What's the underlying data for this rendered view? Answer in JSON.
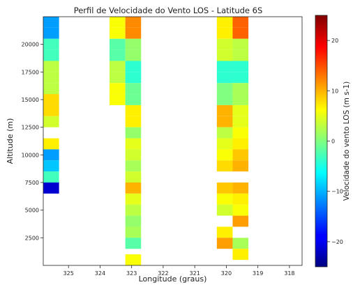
{
  "chart_data": {
    "type": "heatmap",
    "title": "Perfil de Velocidade do Vento LOS - Latitude 6S",
    "xlabel": "Longitude (graus)",
    "ylabel": "Altitude (m)",
    "colorbar_label": "Velocidade do vento LOS (m s-1)",
    "colormap": "jet",
    "x_inverted": true,
    "xlim": [
      325.8,
      317.6
    ],
    "ylim": [
      0,
      22500
    ],
    "xticks": [
      325,
      324,
      323,
      322,
      321,
      320,
      319,
      318
    ],
    "yticks": [
      2500,
      5000,
      7500,
      10000,
      12500,
      15000,
      17500,
      20000
    ],
    "clim": [
      -25,
      25
    ],
    "cticks": [
      -20,
      -10,
      0,
      10,
      20
    ],
    "cell_height_m": 1000,
    "columns": [
      {
        "lon_left": 325.8,
        "lon_right": 325.3,
        "cells": [
          {
            "alt": 22000,
            "v": -11
          },
          {
            "alt": 21000,
            "v": -11
          },
          {
            "alt": 20000,
            "v": -3
          },
          {
            "alt": 19000,
            "v": -3
          },
          {
            "alt": 18000,
            "v": 3
          },
          {
            "alt": 17000,
            "v": 3
          },
          {
            "alt": 16000,
            "v": 3
          },
          {
            "alt": 15000,
            "v": 8
          },
          {
            "alt": 14000,
            "v": 8
          },
          {
            "alt": 13000,
            "v": 4
          },
          {
            "alt": 11000,
            "v": 7
          },
          {
            "alt": 10000,
            "v": -11
          },
          {
            "alt": 9000,
            "v": -9
          },
          {
            "alt": 8000,
            "v": -3
          },
          {
            "alt": 7000,
            "v": -21
          }
        ]
      },
      {
        "lon_left": 323.7,
        "lon_right": 323.2,
        "cells": [
          {
            "alt": 22000,
            "v": 6
          },
          {
            "alt": 21000,
            "v": 6
          },
          {
            "alt": 20000,
            "v": -2
          },
          {
            "alt": 19000,
            "v": -2
          },
          {
            "alt": 18000,
            "v": 3
          },
          {
            "alt": 17000,
            "v": 3
          },
          {
            "alt": 16000,
            "v": 6
          },
          {
            "alt": 15000,
            "v": 6
          }
        ]
      },
      {
        "lon_left": 323.2,
        "lon_right": 322.7,
        "cells": [
          {
            "alt": 22000,
            "v": 12
          },
          {
            "alt": 21000,
            "v": 12
          },
          {
            "alt": 20000,
            "v": 1
          },
          {
            "alt": 19000,
            "v": 1
          },
          {
            "alt": 18000,
            "v": -4
          },
          {
            "alt": 17000,
            "v": -4
          },
          {
            "alt": 16000,
            "v": -1
          },
          {
            "alt": 15000,
            "v": -1
          },
          {
            "alt": 14000,
            "v": 7
          },
          {
            "alt": 13000,
            "v": 7
          },
          {
            "alt": 12000,
            "v": 1
          },
          {
            "alt": 11000,
            "v": 5
          },
          {
            "alt": 10000,
            "v": 4
          },
          {
            "alt": 9000,
            "v": 2
          },
          {
            "alt": 8000,
            "v": 4
          },
          {
            "alt": 7000,
            "v": 10
          },
          {
            "alt": 6000,
            "v": 5
          },
          {
            "alt": 5000,
            "v": 3
          },
          {
            "alt": 4000,
            "v": 1
          },
          {
            "alt": 3000,
            "v": 2
          },
          {
            "alt": 2000,
            "v": -2
          },
          {
            "alt": 500,
            "v": 6
          }
        ]
      },
      {
        "lon_left": 320.3,
        "lon_right": 319.8,
        "cells": [
          {
            "alt": 22000,
            "v": 7
          },
          {
            "alt": 21000,
            "v": 7
          },
          {
            "alt": 20000,
            "v": 4
          },
          {
            "alt": 19000,
            "v": 4
          },
          {
            "alt": 18000,
            "v": -4
          },
          {
            "alt": 17000,
            "v": -4
          },
          {
            "alt": 16000,
            "v": 0
          },
          {
            "alt": 15000,
            "v": 0
          },
          {
            "alt": 14000,
            "v": 10
          },
          {
            "alt": 13000,
            "v": 10
          },
          {
            "alt": 12000,
            "v": 3
          },
          {
            "alt": 11000,
            "v": 5
          },
          {
            "alt": 10000,
            "v": 6
          },
          {
            "alt": 9000,
            "v": 8
          },
          {
            "alt": 7000,
            "v": 9
          },
          {
            "alt": 6000,
            "v": 6
          },
          {
            "alt": 5000,
            "v": 4
          },
          {
            "alt": 3000,
            "v": 7
          },
          {
            "alt": 2000,
            "v": 11
          }
        ]
      },
      {
        "lon_left": 319.8,
        "lon_right": 319.3,
        "cells": [
          {
            "alt": 22000,
            "v": 14
          },
          {
            "alt": 21000,
            "v": 14
          },
          {
            "alt": 20000,
            "v": 3
          },
          {
            "alt": 19000,
            "v": 3
          },
          {
            "alt": 18000,
            "v": -4
          },
          {
            "alt": 17000,
            "v": -4
          },
          {
            "alt": 16000,
            "v": 2
          },
          {
            "alt": 15000,
            "v": 2
          },
          {
            "alt": 14000,
            "v": 5
          },
          {
            "alt": 13000,
            "v": 5
          },
          {
            "alt": 12000,
            "v": 6
          },
          {
            "alt": 11000,
            "v": 7
          },
          {
            "alt": 10000,
            "v": 9
          },
          {
            "alt": 9000,
            "v": 10
          },
          {
            "alt": 7000,
            "v": 10
          },
          {
            "alt": 6000,
            "v": 7
          },
          {
            "alt": 5000,
            "v": 6
          },
          {
            "alt": 4000,
            "v": 11
          },
          {
            "alt": 2000,
            "v": 2
          },
          {
            "alt": 1000,
            "v": 7
          }
        ]
      }
    ]
  }
}
